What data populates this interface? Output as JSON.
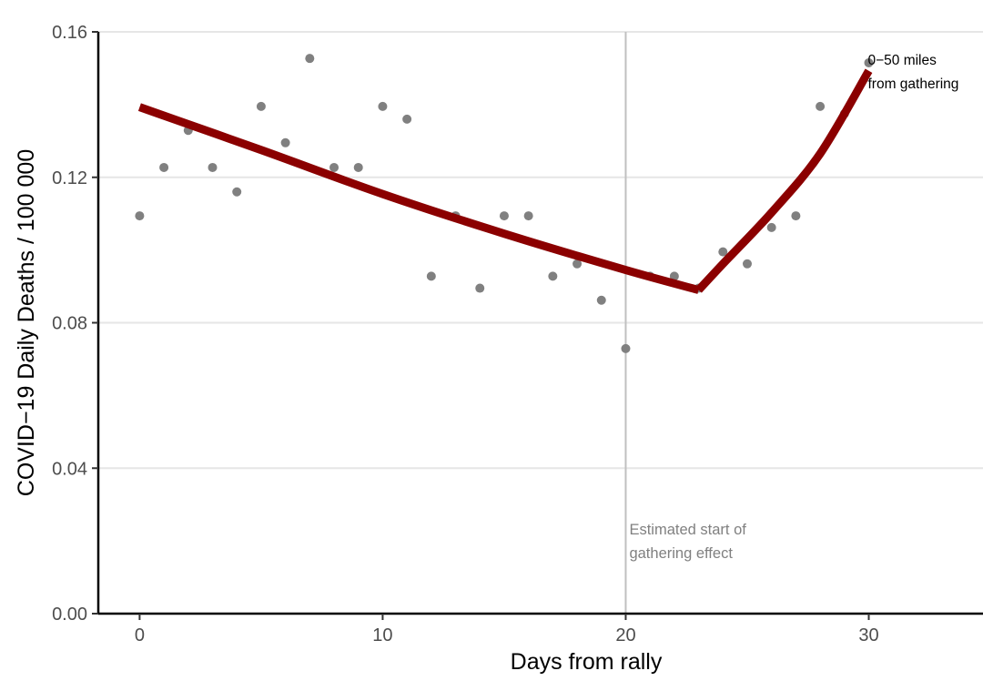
{
  "chart_data": {
    "type": "scatter",
    "xlabel": "Days from rally",
    "ylabel": "COVID−19 Daily Deaths / 100 000",
    "xlim": [
      -1.7,
      34.7
    ],
    "ylim": [
      0,
      0.16
    ],
    "x_ticks": [
      0,
      10,
      20,
      30
    ],
    "x_tick_labels": [
      "0",
      "10",
      "20",
      "30"
    ],
    "y_ticks": [
      0,
      0.04,
      0.08,
      0.12,
      0.16
    ],
    "y_tick_labels": [
      "0.00",
      "0.04",
      "0.08",
      "0.12",
      "0.16"
    ],
    "grid": "horizontal major lines",
    "colors": {
      "points": "#808080",
      "fit_line": "#8b0000",
      "vline": "#c0c0c0",
      "grid": "#e6e6e6"
    },
    "points": [
      {
        "x": 0,
        "y": 0.1094
      },
      {
        "x": 1,
        "y": 0.1227
      },
      {
        "x": 2,
        "y": 0.1329
      },
      {
        "x": 3,
        "y": 0.1227
      },
      {
        "x": 4,
        "y": 0.116
      },
      {
        "x": 5,
        "y": 0.1395
      },
      {
        "x": 6,
        "y": 0.1295
      },
      {
        "x": 7,
        "y": 0.1527
      },
      {
        "x": 8,
        "y": 0.1227
      },
      {
        "x": 9,
        "y": 0.1227
      },
      {
        "x": 10,
        "y": 0.1395
      },
      {
        "x": 11,
        "y": 0.136
      },
      {
        "x": 12,
        "y": 0.0928
      },
      {
        "x": 13,
        "y": 0.1094
      },
      {
        "x": 14,
        "y": 0.0895
      },
      {
        "x": 15,
        "y": 0.1094
      },
      {
        "x": 16,
        "y": 0.1094
      },
      {
        "x": 17,
        "y": 0.0928
      },
      {
        "x": 18,
        "y": 0.0962
      },
      {
        "x": 19,
        "y": 0.0862
      },
      {
        "x": 20,
        "y": 0.0729
      },
      {
        "x": 21,
        "y": 0.0928
      },
      {
        "x": 22,
        "y": 0.0928
      },
      {
        "x": 23,
        "y": 0.0895
      },
      {
        "x": 24,
        "y": 0.0995
      },
      {
        "x": 25,
        "y": 0.0962
      },
      {
        "x": 26,
        "y": 0.1062
      },
      {
        "x": 27,
        "y": 0.1094
      },
      {
        "x": 28,
        "y": 0.1395
      },
      {
        "x": 29,
        "y": 0.1375
      },
      {
        "x": 30,
        "y": 0.1515
      }
    ],
    "fit": {
      "segment_before": [
        {
          "x": 0,
          "y": 0.1393
        },
        {
          "x": 5,
          "y": 0.1275
        },
        {
          "x": 10,
          "y": 0.1154
        },
        {
          "x": 15,
          "y": 0.1045
        },
        {
          "x": 20,
          "y": 0.0945
        },
        {
          "x": 23,
          "y": 0.089
        }
      ],
      "segment_after": [
        {
          "x": 23,
          "y": 0.089
        },
        {
          "x": 24,
          "y": 0.0962
        },
        {
          "x": 26,
          "y": 0.1103
        },
        {
          "x": 28,
          "y": 0.1265
        },
        {
          "x": 30,
          "y": 0.1493
        }
      ]
    },
    "vline": {
      "x": 20,
      "label_lines": [
        "Estimated start of",
        "gathering effect"
      ]
    },
    "series_label": {
      "lines": [
        "0−50 miles",
        "from gathering"
      ],
      "x": 30,
      "y": 0.1515
    }
  }
}
